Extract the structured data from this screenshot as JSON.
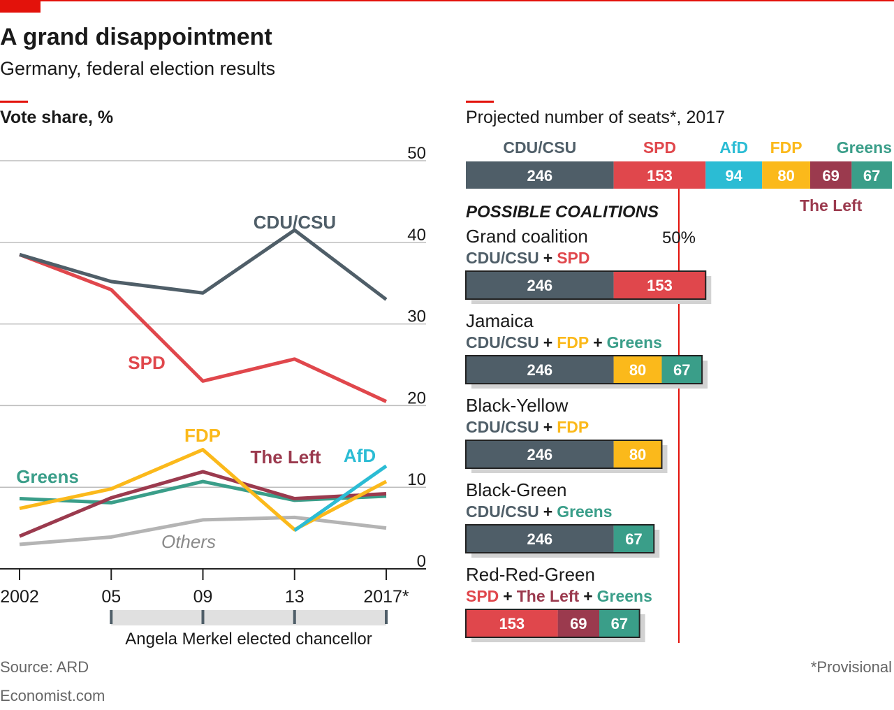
{
  "title": "A grand disappointment",
  "subtitle": "Germany, federal election results",
  "source": "Source: ARD",
  "footer": "Economist.com",
  "note": "*Provisional",
  "chart_data": [
    {
      "type": "line",
      "title": "Vote share, %",
      "categories": [
        "2002",
        "05",
        "09",
        "13",
        "2017*"
      ],
      "ylim": [
        0,
        50
      ],
      "yticks": [
        0,
        10,
        20,
        30,
        40,
        50
      ],
      "grid": true,
      "series": [
        {
          "name": "Others",
          "color": "#b4b4b4",
          "values": [
            3.0,
            3.9,
            6.0,
            6.3,
            5.0
          ]
        },
        {
          "name": "Greens",
          "color": "#3a9e89",
          "values": [
            8.6,
            8.1,
            10.7,
            8.4,
            8.9
          ]
        },
        {
          "name": "The Left",
          "color": "#9b3a4e",
          "values": [
            4.0,
            8.7,
            11.9,
            8.6,
            9.2
          ]
        },
        {
          "name": "FDP",
          "color": "#fbb91b",
          "values": [
            7.4,
            9.8,
            14.6,
            4.8,
            10.7
          ]
        },
        {
          "name": "AfD",
          "color": "#2bbcd4",
          "values": [
            null,
            null,
            null,
            4.7,
            12.6
          ]
        },
        {
          "name": "SPD",
          "color": "#e0474c",
          "values": [
            38.5,
            34.2,
            23.0,
            25.7,
            20.5
          ]
        },
        {
          "name": "CDU/CSU",
          "color": "#4f5e68",
          "values": [
            38.5,
            35.2,
            33.8,
            41.5,
            33.0
          ]
        }
      ],
      "annotation": "Angela Merkel elected chancellor"
    },
    {
      "type": "stacked-bar",
      "title": "Projected number of seats*, 2017",
      "categories": [
        "CDU/CSU",
        "SPD",
        "AfD",
        "FDP",
        "The Left",
        "Greens"
      ],
      "values": [
        246,
        153,
        94,
        80,
        69,
        67
      ],
      "colors": [
        "#4f5e68",
        "#e0474c",
        "#2bbcd4",
        "#fbb91b",
        "#9b3a4e",
        "#3a9e89"
      ],
      "threshold": {
        "value": 50,
        "label": "50%"
      },
      "coalitions_title": "POSSIBLE COALITIONS",
      "joiner": "+",
      "coalitions": [
        {
          "name": "Grand coalition",
          "parties": [
            "CDU/CSU",
            "SPD"
          ],
          "values": [
            246,
            153
          ],
          "colors": [
            "#4f5e68",
            "#e0474c"
          ]
        },
        {
          "name": "Jamaica",
          "parties": [
            "CDU/CSU",
            "FDP",
            "Greens"
          ],
          "values": [
            246,
            80,
            67
          ],
          "colors": [
            "#4f5e68",
            "#fbb91b",
            "#3a9e89"
          ]
        },
        {
          "name": "Black-Yellow",
          "parties": [
            "CDU/CSU",
            "FDP"
          ],
          "values": [
            246,
            80
          ],
          "colors": [
            "#4f5e68",
            "#fbb91b"
          ]
        },
        {
          "name": "Black-Green",
          "parties": [
            "CDU/CSU",
            "Greens"
          ],
          "values": [
            246,
            67
          ],
          "colors": [
            "#4f5e68",
            "#3a9e89"
          ]
        },
        {
          "name": "Red-Red-Green",
          "parties": [
            "SPD",
            "The Left",
            "Greens"
          ],
          "values": [
            153,
            69,
            67
          ],
          "colors": [
            "#e0474c",
            "#9b3a4e",
            "#3a9e89"
          ]
        }
      ]
    }
  ]
}
